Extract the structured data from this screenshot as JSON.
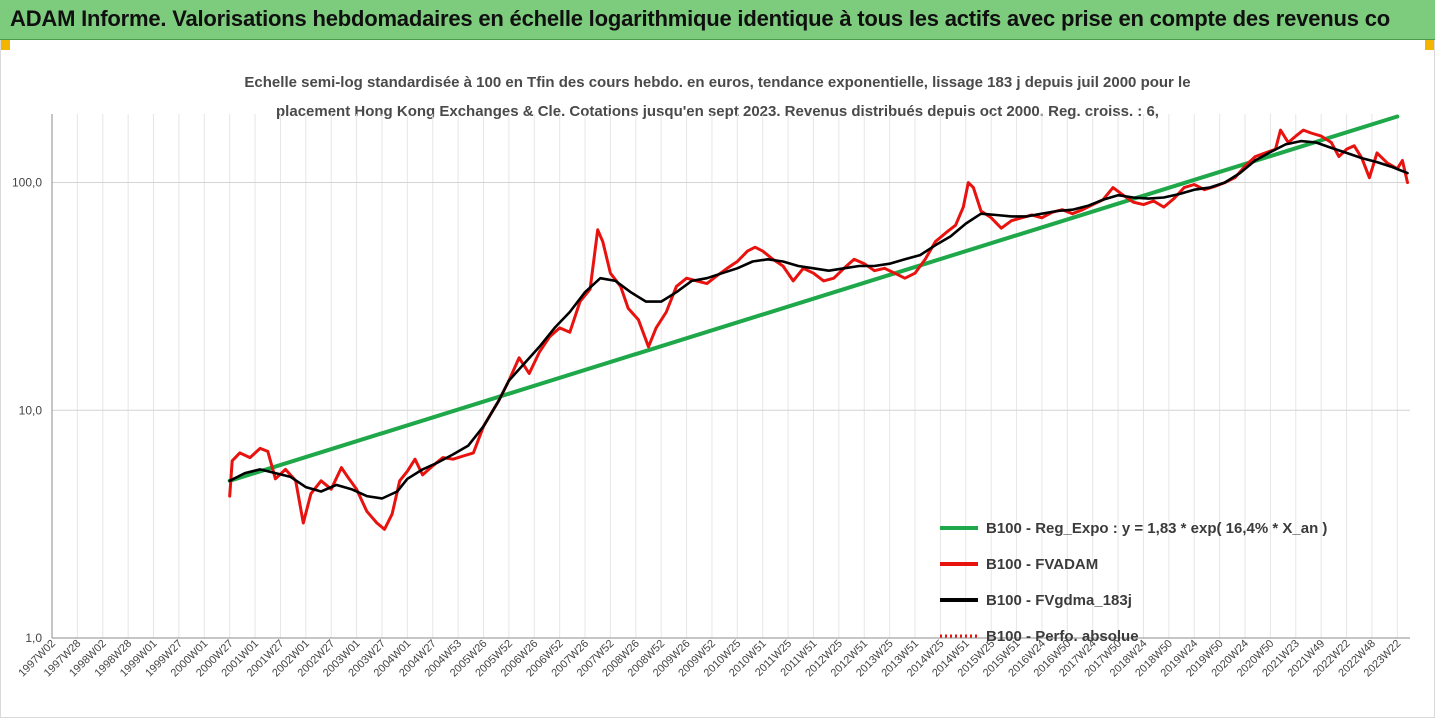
{
  "banner": {
    "title": "ADAM Informe. Valorisations hebdomadaires en échelle logarithmique identique à tous les actifs avec prise en compte des revenus co",
    "background": "#7dcb7d",
    "corner_color": "#f5b400"
  },
  "chart_data": {
    "type": "line",
    "title_line1": "Echelle semi-log standardisée à 100 en Tfin des cours hebdo. en euros, tendance exponentielle, lissage 183 j depuis juil 2000 pour le",
    "title_line2": "placement Hong Kong Exchanges & Cle. Cotations jusqu'en sept 2023. Revenus distribués depuis oct 2000. Reg. croiss. : 6,",
    "y_scale": "log",
    "ylim": [
      1,
      200
    ],
    "y_ticks": [
      {
        "value": 1,
        "label": "1,0"
      },
      {
        "value": 10,
        "label": "10,0"
      },
      {
        "value": 100,
        "label": "100,0"
      }
    ],
    "x_start": 1997.0,
    "x_end": 2023.75,
    "x_ticks": [
      {
        "x": 1997.0,
        "label": "1997W02"
      },
      {
        "x": 1997.5,
        "label": "1997W28"
      },
      {
        "x": 1998.0,
        "label": "1998W02"
      },
      {
        "x": 1998.5,
        "label": "1998W28"
      },
      {
        "x": 1999.0,
        "label": "1999W01"
      },
      {
        "x": 1999.5,
        "label": "1999W27"
      },
      {
        "x": 2000.0,
        "label": "2000W01"
      },
      {
        "x": 2000.5,
        "label": "2000W27"
      },
      {
        "x": 2001.0,
        "label": "2001W01"
      },
      {
        "x": 2001.5,
        "label": "2001W27"
      },
      {
        "x": 2002.0,
        "label": "2002W01"
      },
      {
        "x": 2002.5,
        "label": "2002W27"
      },
      {
        "x": 2003.0,
        "label": "2003W01"
      },
      {
        "x": 2003.5,
        "label": "2003W27"
      },
      {
        "x": 2004.0,
        "label": "2004W01"
      },
      {
        "x": 2004.5,
        "label": "2004W27"
      },
      {
        "x": 2005.0,
        "label": "2004W53"
      },
      {
        "x": 2005.5,
        "label": "2005W26"
      },
      {
        "x": 2006.0,
        "label": "2005W52"
      },
      {
        "x": 2006.5,
        "label": "2006W26"
      },
      {
        "x": 2007.0,
        "label": "2006W52"
      },
      {
        "x": 2007.5,
        "label": "2007W26"
      },
      {
        "x": 2008.0,
        "label": "2007W52"
      },
      {
        "x": 2008.5,
        "label": "2008W26"
      },
      {
        "x": 2009.0,
        "label": "2008W52"
      },
      {
        "x": 2009.5,
        "label": "2009W26"
      },
      {
        "x": 2010.0,
        "label": "2009W52"
      },
      {
        "x": 2010.5,
        "label": "2010W25"
      },
      {
        "x": 2011.0,
        "label": "2010W51"
      },
      {
        "x": 2011.5,
        "label": "2011W25"
      },
      {
        "x": 2012.0,
        "label": "2011W51"
      },
      {
        "x": 2012.5,
        "label": "2012W25"
      },
      {
        "x": 2013.0,
        "label": "2012W51"
      },
      {
        "x": 2013.5,
        "label": "2013W25"
      },
      {
        "x": 2014.0,
        "label": "2013W51"
      },
      {
        "x": 2014.5,
        "label": "2014W25"
      },
      {
        "x": 2015.0,
        "label": "2014W51"
      },
      {
        "x": 2015.5,
        "label": "2015W25"
      },
      {
        "x": 2016.0,
        "label": "2015W51"
      },
      {
        "x": 2016.5,
        "label": "2016W24"
      },
      {
        "x": 2017.0,
        "label": "2016W50"
      },
      {
        "x": 2017.5,
        "label": "2017W24"
      },
      {
        "x": 2018.0,
        "label": "2017W50"
      },
      {
        "x": 2018.5,
        "label": "2018W24"
      },
      {
        "x": 2019.0,
        "label": "2018W50"
      },
      {
        "x": 2019.5,
        "label": "2019W24"
      },
      {
        "x": 2020.0,
        "label": "2019W50"
      },
      {
        "x": 2020.5,
        "label": "2020W24"
      },
      {
        "x": 2021.0,
        "label": "2020W50"
      },
      {
        "x": 2021.5,
        "label": "2021W23"
      },
      {
        "x": 2022.0,
        "label": "2021W49"
      },
      {
        "x": 2022.5,
        "label": "2022W22"
      },
      {
        "x": 2023.0,
        "label": "2022W48"
      },
      {
        "x": 2023.5,
        "label": "2023W22"
      }
    ],
    "legend_position": "bottom-right",
    "series": [
      {
        "name": "B100 - Reg_Expo : y = 1,83 * exp( 16,4% *  X_an )",
        "color": "#1fa84a",
        "style": "solid",
        "points": [
          [
            2000.5,
            4.9
          ],
          [
            2023.5,
            195
          ]
        ]
      },
      {
        "name": "B100 - FVADAM",
        "color": "#e8120f",
        "style": "solid",
        "points": [
          [
            2000.5,
            4.2
          ],
          [
            2000.55,
            6.0
          ],
          [
            2000.7,
            6.5
          ],
          [
            2000.9,
            6.2
          ],
          [
            2001.1,
            6.8
          ],
          [
            2001.25,
            6.6
          ],
          [
            2001.4,
            5.0
          ],
          [
            2001.6,
            5.5
          ],
          [
            2001.8,
            4.9
          ],
          [
            2001.95,
            3.2
          ],
          [
            2002.1,
            4.3
          ],
          [
            2002.3,
            4.9
          ],
          [
            2002.5,
            4.5
          ],
          [
            2002.7,
            5.6
          ],
          [
            2002.85,
            5.0
          ],
          [
            2003.0,
            4.5
          ],
          [
            2003.2,
            3.6
          ],
          [
            2003.4,
            3.2
          ],
          [
            2003.55,
            3.0
          ],
          [
            2003.7,
            3.5
          ],
          [
            2003.85,
            4.9
          ],
          [
            2004.0,
            5.4
          ],
          [
            2004.15,
            6.1
          ],
          [
            2004.3,
            5.2
          ],
          [
            2004.5,
            5.7
          ],
          [
            2004.7,
            6.2
          ],
          [
            2004.9,
            6.1
          ],
          [
            2005.1,
            6.3
          ],
          [
            2005.3,
            6.5
          ],
          [
            2005.5,
            8.5
          ],
          [
            2005.8,
            11.0
          ],
          [
            2006.0,
            13.5
          ],
          [
            2006.2,
            17.0
          ],
          [
            2006.4,
            14.5
          ],
          [
            2006.6,
            18.0
          ],
          [
            2006.8,
            21.0
          ],
          [
            2007.0,
            23.0
          ],
          [
            2007.2,
            22.0
          ],
          [
            2007.4,
            30.0
          ],
          [
            2007.6,
            34.0
          ],
          [
            2007.75,
            62.0
          ],
          [
            2007.85,
            55.0
          ],
          [
            2008.0,
            40.0
          ],
          [
            2008.2,
            35.0
          ],
          [
            2008.35,
            28.0
          ],
          [
            2008.55,
            25.0
          ],
          [
            2008.75,
            19.0
          ],
          [
            2008.9,
            23.0
          ],
          [
            2009.1,
            27.0
          ],
          [
            2009.3,
            35.0
          ],
          [
            2009.5,
            38.0
          ],
          [
            2009.7,
            37.0
          ],
          [
            2009.9,
            36.0
          ],
          [
            2010.1,
            39.0
          ],
          [
            2010.3,
            42.0
          ],
          [
            2010.5,
            45.0
          ],
          [
            2010.7,
            50.0
          ],
          [
            2010.85,
            52.0
          ],
          [
            2011.0,
            50.0
          ],
          [
            2011.2,
            46.0
          ],
          [
            2011.4,
            43.0
          ],
          [
            2011.6,
            37.0
          ],
          [
            2011.8,
            42.0
          ],
          [
            2012.0,
            40.0
          ],
          [
            2012.2,
            37.0
          ],
          [
            2012.4,
            38.0
          ],
          [
            2012.6,
            42.0
          ],
          [
            2012.8,
            46.0
          ],
          [
            2013.0,
            44.0
          ],
          [
            2013.2,
            41.0
          ],
          [
            2013.4,
            42.0
          ],
          [
            2013.6,
            40.0
          ],
          [
            2013.8,
            38.0
          ],
          [
            2014.0,
            40.0
          ],
          [
            2014.2,
            46.0
          ],
          [
            2014.4,
            55.0
          ],
          [
            2014.6,
            60.0
          ],
          [
            2014.8,
            65.0
          ],
          [
            2014.95,
            78.0
          ],
          [
            2015.05,
            100.0
          ],
          [
            2015.15,
            95.0
          ],
          [
            2015.3,
            75.0
          ],
          [
            2015.5,
            70.0
          ],
          [
            2015.7,
            63.0
          ],
          [
            2015.9,
            68.0
          ],
          [
            2016.1,
            70.0
          ],
          [
            2016.3,
            72.0
          ],
          [
            2016.5,
            70.0
          ],
          [
            2016.7,
            74.0
          ],
          [
            2016.9,
            76.0
          ],
          [
            2017.1,
            73.0
          ],
          [
            2017.3,
            76.0
          ],
          [
            2017.5,
            80.0
          ],
          [
            2017.7,
            84.0
          ],
          [
            2017.9,
            95.0
          ],
          [
            2018.1,
            88.0
          ],
          [
            2018.3,
            82.0
          ],
          [
            2018.5,
            80.0
          ],
          [
            2018.7,
            83.0
          ],
          [
            2018.9,
            78.0
          ],
          [
            2019.1,
            85.0
          ],
          [
            2019.3,
            95.0
          ],
          [
            2019.5,
            98.0
          ],
          [
            2019.7,
            93.0
          ],
          [
            2019.9,
            96.0
          ],
          [
            2020.1,
            100.0
          ],
          [
            2020.3,
            105.0
          ],
          [
            2020.5,
            118.0
          ],
          [
            2020.7,
            130.0
          ],
          [
            2020.9,
            135.0
          ],
          [
            2021.1,
            140.0
          ],
          [
            2021.2,
            170.0
          ],
          [
            2021.35,
            150.0
          ],
          [
            2021.5,
            160.0
          ],
          [
            2021.65,
            170.0
          ],
          [
            2021.8,
            165.0
          ],
          [
            2022.0,
            160.0
          ],
          [
            2022.2,
            150.0
          ],
          [
            2022.35,
            130.0
          ],
          [
            2022.5,
            140.0
          ],
          [
            2022.65,
            145.0
          ],
          [
            2022.8,
            128.0
          ],
          [
            2022.95,
            105.0
          ],
          [
            2023.1,
            135.0
          ],
          [
            2023.3,
            122.0
          ],
          [
            2023.5,
            115.0
          ],
          [
            2023.6,
            125.0
          ],
          [
            2023.7,
            100.0
          ]
        ]
      },
      {
        "name": "B100 - FVgdma_183j",
        "color": "#000000",
        "style": "solid",
        "points": [
          [
            2000.5,
            4.9
          ],
          [
            2000.8,
            5.3
          ],
          [
            2001.1,
            5.5
          ],
          [
            2001.4,
            5.3
          ],
          [
            2001.7,
            5.1
          ],
          [
            2002.0,
            4.6
          ],
          [
            2002.3,
            4.4
          ],
          [
            2002.6,
            4.7
          ],
          [
            2002.9,
            4.5
          ],
          [
            2003.2,
            4.2
          ],
          [
            2003.5,
            4.1
          ],
          [
            2003.8,
            4.4
          ],
          [
            2004.0,
            5.0
          ],
          [
            2004.3,
            5.5
          ],
          [
            2004.6,
            5.9
          ],
          [
            2004.9,
            6.4
          ],
          [
            2005.2,
            7.0
          ],
          [
            2005.5,
            8.5
          ],
          [
            2005.8,
            11.0
          ],
          [
            2006.0,
            13.5
          ],
          [
            2006.3,
            16.0
          ],
          [
            2006.6,
            19.0
          ],
          [
            2006.9,
            23.0
          ],
          [
            2007.2,
            27.0
          ],
          [
            2007.5,
            33.0
          ],
          [
            2007.8,
            38.0
          ],
          [
            2008.1,
            37.0
          ],
          [
            2008.4,
            33.0
          ],
          [
            2008.7,
            30.0
          ],
          [
            2009.0,
            30.0
          ],
          [
            2009.3,
            33.0
          ],
          [
            2009.6,
            37.0
          ],
          [
            2009.9,
            38.0
          ],
          [
            2010.2,
            40.0
          ],
          [
            2010.5,
            42.0
          ],
          [
            2010.8,
            45.0
          ],
          [
            2011.1,
            46.0
          ],
          [
            2011.4,
            45.0
          ],
          [
            2011.7,
            43.0
          ],
          [
            2012.0,
            42.0
          ],
          [
            2012.3,
            41.0
          ],
          [
            2012.6,
            42.0
          ],
          [
            2012.9,
            43.0
          ],
          [
            2013.2,
            43.0
          ],
          [
            2013.5,
            44.0
          ],
          [
            2013.8,
            46.0
          ],
          [
            2014.1,
            48.0
          ],
          [
            2014.4,
            53.0
          ],
          [
            2014.7,
            58.0
          ],
          [
            2015.0,
            66.0
          ],
          [
            2015.3,
            73.0
          ],
          [
            2015.6,
            72.0
          ],
          [
            2015.9,
            71.0
          ],
          [
            2016.2,
            71.0
          ],
          [
            2016.5,
            73.0
          ],
          [
            2016.8,
            75.0
          ],
          [
            2017.1,
            76.0
          ],
          [
            2017.4,
            79.0
          ],
          [
            2017.7,
            84.0
          ],
          [
            2018.0,
            88.0
          ],
          [
            2018.3,
            86.0
          ],
          [
            2018.6,
            85.0
          ],
          [
            2018.9,
            86.0
          ],
          [
            2019.2,
            89.0
          ],
          [
            2019.5,
            93.0
          ],
          [
            2019.8,
            95.0
          ],
          [
            2020.1,
            100.0
          ],
          [
            2020.4,
            110.0
          ],
          [
            2020.7,
            125.0
          ],
          [
            2021.0,
            136.0
          ],
          [
            2021.3,
            147.0
          ],
          [
            2021.6,
            152.0
          ],
          [
            2021.9,
            150.0
          ],
          [
            2022.2,
            142.0
          ],
          [
            2022.5,
            135.0
          ],
          [
            2022.8,
            128.0
          ],
          [
            2023.1,
            123.0
          ],
          [
            2023.4,
            117.0
          ],
          [
            2023.7,
            110.0
          ]
        ]
      },
      {
        "name": "B100 - Perfo. absolue",
        "color": "#e8120f",
        "style": "dotted",
        "points": []
      }
    ]
  }
}
